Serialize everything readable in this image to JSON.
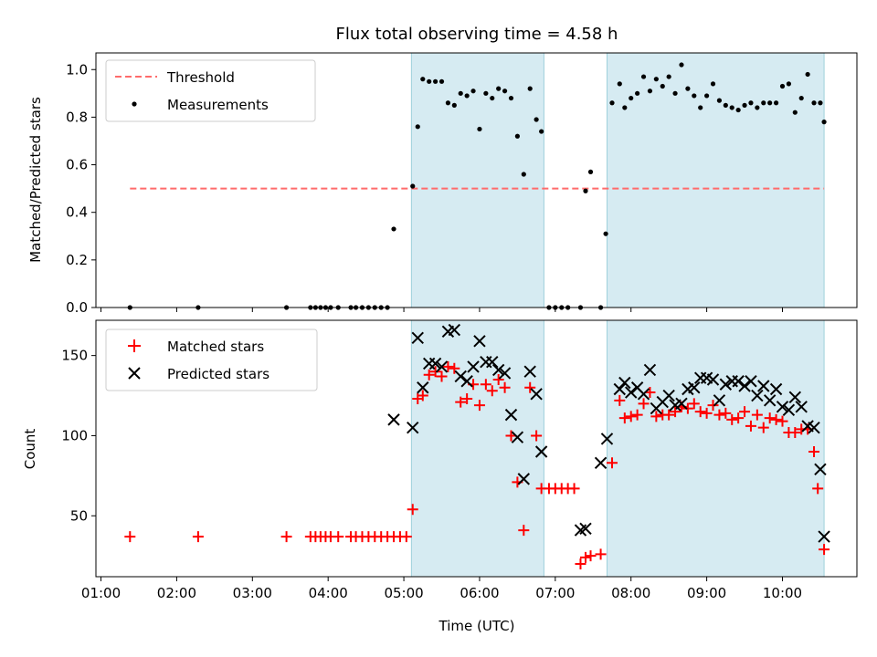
{
  "title": "Flux total observing time = 4.58 h",
  "chart_data": [
    {
      "type": "scatter",
      "ylabel": "Matched/Predicted stars",
      "xlim": [
        "00:56",
        "10:59"
      ],
      "ylim": [
        0,
        1.07
      ],
      "yticks": [
        0.0,
        0.2,
        0.4,
        0.6,
        0.8,
        1.0
      ],
      "shaded_intervals": [
        [
          "05:06",
          "06:51"
        ],
        [
          "07:41",
          "10:33"
        ]
      ],
      "legend_position": "top-left",
      "threshold": {
        "name": "Threshold",
        "value": 0.5,
        "x_start": "01:23",
        "x_end": "10:33",
        "color": "#ff6b6b"
      },
      "series": [
        {
          "name": "Measurements",
          "color": "#000000",
          "points": [
            [
              "01:23",
              0.0
            ],
            [
              "02:17",
              0.0
            ],
            [
              "03:27",
              0.0
            ],
            [
              "03:46",
              0.0
            ],
            [
              "03:50",
              0.0
            ],
            [
              "03:54",
              0.0
            ],
            [
              "03:58",
              0.0
            ],
            [
              "04:02",
              0.0
            ],
            [
              "04:08",
              0.0
            ],
            [
              "04:18",
              0.0
            ],
            [
              "04:22",
              0.0
            ],
            [
              "04:27",
              0.0
            ],
            [
              "04:32",
              0.0
            ],
            [
              "04:37",
              0.0
            ],
            [
              "04:42",
              0.0
            ],
            [
              "04:47",
              0.0
            ],
            [
              "04:52",
              0.33
            ],
            [
              "05:07",
              0.51
            ],
            [
              "05:11",
              0.76
            ],
            [
              "05:15",
              0.96
            ],
            [
              "05:20",
              0.95
            ],
            [
              "05:25",
              0.95
            ],
            [
              "05:30",
              0.95
            ],
            [
              "05:35",
              0.86
            ],
            [
              "05:40",
              0.85
            ],
            [
              "05:45",
              0.9
            ],
            [
              "05:50",
              0.89
            ],
            [
              "05:55",
              0.91
            ],
            [
              "06:00",
              0.75
            ],
            [
              "06:05",
              0.9
            ],
            [
              "06:10",
              0.88
            ],
            [
              "06:15",
              0.92
            ],
            [
              "06:20",
              0.91
            ],
            [
              "06:25",
              0.88
            ],
            [
              "06:30",
              0.72
            ],
            [
              "06:35",
              0.56
            ],
            [
              "06:40",
              0.92
            ],
            [
              "06:45",
              0.79
            ],
            [
              "06:49",
              0.74
            ],
            [
              "06:55",
              0.0
            ],
            [
              "07:00",
              0.0
            ],
            [
              "07:05",
              0.0
            ],
            [
              "07:10",
              0.0
            ],
            [
              "07:20",
              0.0
            ],
            [
              "07:24",
              0.49
            ],
            [
              "07:28",
              0.57
            ],
            [
              "07:36",
              0.0
            ],
            [
              "07:40",
              0.31
            ],
            [
              "07:45",
              0.86
            ],
            [
              "07:51",
              0.94
            ],
            [
              "07:55",
              0.84
            ],
            [
              "08:00",
              0.88
            ],
            [
              "08:05",
              0.9
            ],
            [
              "08:10",
              0.97
            ],
            [
              "08:15",
              0.91
            ],
            [
              "08:20",
              0.96
            ],
            [
              "08:25",
              0.93
            ],
            [
              "08:30",
              0.97
            ],
            [
              "08:35",
              0.9
            ],
            [
              "08:40",
              1.02
            ],
            [
              "08:45",
              0.92
            ],
            [
              "08:50",
              0.89
            ],
            [
              "08:55",
              0.84
            ],
            [
              "09:00",
              0.89
            ],
            [
              "09:05",
              0.94
            ],
            [
              "09:10",
              0.87
            ],
            [
              "09:15",
              0.85
            ],
            [
              "09:20",
              0.84
            ],
            [
              "09:25",
              0.83
            ],
            [
              "09:30",
              0.85
            ],
            [
              "09:35",
              0.86
            ],
            [
              "09:40",
              0.84
            ],
            [
              "09:45",
              0.86
            ],
            [
              "09:50",
              0.86
            ],
            [
              "09:55",
              0.86
            ],
            [
              "10:00",
              0.93
            ],
            [
              "10:05",
              0.94
            ],
            [
              "10:10",
              0.82
            ],
            [
              "10:15",
              0.88
            ],
            [
              "10:20",
              0.98
            ],
            [
              "10:25",
              0.86
            ],
            [
              "10:30",
              0.86
            ],
            [
              "10:33",
              0.78
            ]
          ]
        }
      ]
    },
    {
      "type": "scatter",
      "xlabel": "Time (UTC)",
      "ylabel": "Count",
      "xlim": [
        "00:56",
        "10:59"
      ],
      "ylim": [
        12,
        172
      ],
      "yticks": [
        50,
        100,
        150
      ],
      "xticks": [
        "01:00",
        "02:00",
        "03:00",
        "04:00",
        "05:00",
        "06:00",
        "07:00",
        "08:00",
        "09:00",
        "10:00"
      ],
      "shaded_intervals": [
        [
          "05:06",
          "06:51"
        ],
        [
          "07:41",
          "10:33"
        ]
      ],
      "legend_position": "top-left",
      "series": [
        {
          "name": "Matched stars",
          "marker": "plus",
          "color": "#ff0000",
          "points": [
            [
              "01:23",
              37
            ],
            [
              "02:17",
              37
            ],
            [
              "03:27",
              37
            ],
            [
              "03:46",
              37
            ],
            [
              "03:50",
              37
            ],
            [
              "03:54",
              37
            ],
            [
              "03:58",
              37
            ],
            [
              "04:02",
              37
            ],
            [
              "04:08",
              37
            ],
            [
              "04:18",
              37
            ],
            [
              "04:22",
              37
            ],
            [
              "04:27",
              37
            ],
            [
              "04:32",
              37
            ],
            [
              "04:37",
              37
            ],
            [
              "04:42",
              37
            ],
            [
              "04:47",
              37
            ],
            [
              "04:52",
              37
            ],
            [
              "04:57",
              37
            ],
            [
              "05:02",
              37
            ],
            [
              "05:07",
              54
            ],
            [
              "05:11",
              123
            ],
            [
              "05:15",
              125
            ],
            [
              "05:20",
              138
            ],
            [
              "05:25",
              140
            ],
            [
              "05:30",
              137
            ],
            [
              "05:35",
              143
            ],
            [
              "05:40",
              142
            ],
            [
              "05:45",
              121
            ],
            [
              "05:50",
              123
            ],
            [
              "05:55",
              132
            ],
            [
              "06:00",
              119
            ],
            [
              "06:05",
              132
            ],
            [
              "06:10",
              128
            ],
            [
              "06:15",
              135
            ],
            [
              "06:20",
              130
            ],
            [
              "06:25",
              100
            ],
            [
              "06:30",
              71
            ],
            [
              "06:35",
              41
            ],
            [
              "06:40",
              130
            ],
            [
              "06:45",
              100
            ],
            [
              "06:49",
              67
            ],
            [
              "06:55",
              67
            ],
            [
              "07:00",
              67
            ],
            [
              "07:05",
              67
            ],
            [
              "07:10",
              67
            ],
            [
              "07:15",
              67
            ],
            [
              "07:20",
              20
            ],
            [
              "07:24",
              24
            ],
            [
              "07:28",
              25
            ],
            [
              "07:36",
              26
            ],
            [
              "07:45",
              83
            ],
            [
              "07:51",
              122
            ],
            [
              "07:55",
              111
            ],
            [
              "08:00",
              112
            ],
            [
              "08:05",
              113
            ],
            [
              "08:10",
              120
            ],
            [
              "08:15",
              127
            ],
            [
              "08:20",
              112
            ],
            [
              "08:25",
              113
            ],
            [
              "08:30",
              113
            ],
            [
              "08:35",
              115
            ],
            [
              "08:40",
              118
            ],
            [
              "08:45",
              117
            ],
            [
              "08:50",
              120
            ],
            [
              "08:55",
              115
            ],
            [
              "09:00",
              114
            ],
            [
              "09:05",
              119
            ],
            [
              "09:10",
              113
            ],
            [
              "09:15",
              114
            ],
            [
              "09:20",
              110
            ],
            [
              "09:25",
              111
            ],
            [
              "09:30",
              115
            ],
            [
              "09:35",
              106
            ],
            [
              "09:40",
              113
            ],
            [
              "09:45",
              105
            ],
            [
              "09:50",
              111
            ],
            [
              "09:55",
              110
            ],
            [
              "10:00",
              109
            ],
            [
              "10:05",
              102
            ],
            [
              "10:10",
              102
            ],
            [
              "10:15",
              104
            ],
            [
              "10:20",
              104
            ],
            [
              "10:25",
              90
            ],
            [
              "10:28",
              67
            ],
            [
              "10:33",
              29
            ]
          ]
        },
        {
          "name": "Predicted stars",
          "marker": "x",
          "color": "#000000",
          "points": [
            [
              "04:52",
              110
            ],
            [
              "05:07",
              105
            ],
            [
              "05:11",
              161
            ],
            [
              "05:15",
              130
            ],
            [
              "05:20",
              145
            ],
            [
              "05:25",
              145
            ],
            [
              "05:30",
              143
            ],
            [
              "05:35",
              165
            ],
            [
              "05:40",
              166
            ],
            [
              "05:45",
              137
            ],
            [
              "05:50",
              134
            ],
            [
              "05:55",
              143
            ],
            [
              "06:00",
              159
            ],
            [
              "06:05",
              146
            ],
            [
              "06:10",
              146
            ],
            [
              "06:15",
              141
            ],
            [
              "06:20",
              139
            ],
            [
              "06:25",
              113
            ],
            [
              "06:30",
              99
            ],
            [
              "06:35",
              73
            ],
            [
              "06:40",
              140
            ],
            [
              "06:45",
              126
            ],
            [
              "06:49",
              90
            ],
            [
              "07:20",
              41
            ],
            [
              "07:24",
              42
            ],
            [
              "07:36",
              83
            ],
            [
              "07:41",
              98
            ],
            [
              "07:51",
              129
            ],
            [
              "07:55",
              133
            ],
            [
              "08:00",
              127
            ],
            [
              "08:05",
              130
            ],
            [
              "08:10",
              126
            ],
            [
              "08:15",
              141
            ],
            [
              "08:20",
              117
            ],
            [
              "08:25",
              121
            ],
            [
              "08:30",
              125
            ],
            [
              "08:35",
              119
            ],
            [
              "08:40",
              120
            ],
            [
              "08:45",
              129
            ],
            [
              "08:50",
              130
            ],
            [
              "08:55",
              136
            ],
            [
              "09:00",
              136
            ],
            [
              "09:05",
              135
            ],
            [
              "09:10",
              122
            ],
            [
              "09:15",
              132
            ],
            [
              "09:20",
              134
            ],
            [
              "09:25",
              134
            ],
            [
              "09:30",
              131
            ],
            [
              "09:35",
              134
            ],
            [
              "09:40",
              125
            ],
            [
              "09:45",
              131
            ],
            [
              "09:50",
              122
            ],
            [
              "09:55",
              129
            ],
            [
              "10:00",
              118
            ],
            [
              "10:05",
              116
            ],
            [
              "10:10",
              124
            ],
            [
              "10:15",
              118
            ],
            [
              "10:20",
              106
            ],
            [
              "10:25",
              105
            ],
            [
              "10:30",
              79
            ],
            [
              "10:33",
              37
            ]
          ]
        }
      ]
    }
  ]
}
